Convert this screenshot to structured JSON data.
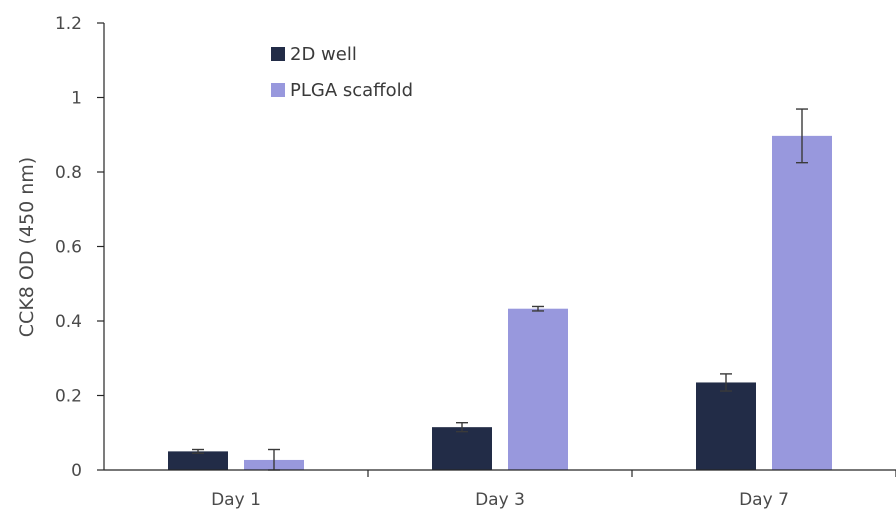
{
  "chart_data": {
    "type": "bar",
    "categories": [
      "Day 1",
      "Day 3",
      "Day 7"
    ],
    "series": [
      {
        "name": "2D well",
        "color": "#222c47",
        "values": [
          0.05,
          0.115,
          0.235
        ],
        "errors": [
          0.005,
          0.012,
          0.023
        ]
      },
      {
        "name": "PLGA scaffold",
        "color": "#9898dd",
        "values": [
          0.027,
          0.433,
          0.897
        ],
        "errors": [
          0.028,
          0.006,
          0.072
        ]
      }
    ],
    "title": "",
    "xlabel": "",
    "ylabel": "CCK8 OD (450 nm)",
    "ylim": [
      0,
      1.2
    ],
    "yticks": [
      "0",
      "0.2",
      "0.4",
      "0.6",
      "0.8",
      "1",
      "1.2"
    ],
    "grid": false,
    "legend_position": "top-left"
  }
}
